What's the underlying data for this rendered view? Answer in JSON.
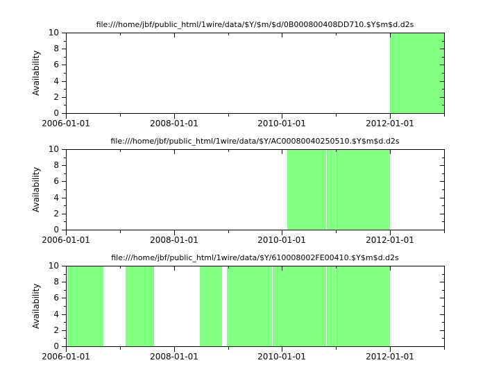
{
  "figure": {
    "background_color": "#ffffff",
    "axis_color": "#000000",
    "text_color": "#000000",
    "grid": false,
    "legend": false
  },
  "chart_data": [
    {
      "type": "area",
      "title": "file:///home/jbf/public_html/1wire/data/$Y/$m/$d/0B000800408DD710.$Y$m$d.d2s",
      "ylabel": "Availability",
      "ylim": [
        0,
        10
      ],
      "xlim": [
        "2006-01-01",
        "2013-01-01"
      ],
      "x_major_ticks": [
        "2006-01-01",
        "2008-01-01",
        "2010-01-01",
        "2012-01-01"
      ],
      "x_major_tick_labels": [
        "2006-01-01",
        "2008-01-01",
        "2010-01-01",
        "2012-01-01"
      ],
      "x_minor_ticks": [
        "2007-01-01",
        "2009-01-01",
        "2011-01-01",
        "2013-01-01"
      ],
      "y_major_ticks": [
        0,
        2,
        4,
        6,
        8,
        10
      ],
      "y_major_tick_labels": [
        "0",
        "2",
        "4",
        "6",
        "8",
        "10"
      ],
      "y_minor_ticks": [
        1,
        3,
        5,
        7,
        9
      ],
      "fill_color": "#80ff80",
      "available_value": 10,
      "intervals": [
        {
          "start": "2012-01-01",
          "end": "2013-01-01"
        }
      ],
      "micro_gaps": []
    },
    {
      "type": "area",
      "title": "file:///home/jbf/public_html/1wire/data/$Y/AC00080040250510.$Y$m$d.d2s",
      "ylabel": "Availability",
      "ylim": [
        0,
        10
      ],
      "xlim": [
        "2006-01-01",
        "2013-01-01"
      ],
      "x_major_ticks": [
        "2006-01-01",
        "2008-01-01",
        "2010-01-01",
        "2012-01-01"
      ],
      "x_major_tick_labels": [
        "2006-01-01",
        "2008-01-01",
        "2010-01-01",
        "2012-01-01"
      ],
      "x_minor_ticks": [
        "2007-01-01",
        "2009-01-01",
        "2011-01-01",
        "2013-01-01"
      ],
      "y_major_ticks": [
        0,
        2,
        4,
        6,
        8,
        10
      ],
      "y_major_tick_labels": [
        "0",
        "2",
        "4",
        "6",
        "8",
        "10"
      ],
      "y_minor_ticks": [
        1,
        3,
        5,
        7,
        9
      ],
      "fill_color": "#80ff80",
      "available_value": 10,
      "intervals": [
        {
          "start": "2010-02-05",
          "end": "2012-01-01"
        }
      ],
      "micro_gaps": [
        "2010-10-25",
        "2010-12-25"
      ]
    },
    {
      "type": "area",
      "title": "file:///home/jbf/public_html/1wire/data/$Y/610008002FE00410.$Y$m$d.d2s",
      "ylabel": "Availability",
      "ylim": [
        0,
        10
      ],
      "xlim": [
        "2006-01-01",
        "2013-01-01"
      ],
      "x_major_ticks": [
        "2006-01-01",
        "2008-01-01",
        "2010-01-01",
        "2012-01-01"
      ],
      "x_major_tick_labels": [
        "2006-01-01",
        "2008-01-01",
        "2010-01-01",
        "2012-01-01"
      ],
      "x_minor_ticks": [
        "2007-01-01",
        "2009-01-01",
        "2011-01-01",
        "2013-01-01"
      ],
      "y_major_ticks": [
        0,
        2,
        4,
        6,
        8,
        10
      ],
      "y_major_tick_labels": [
        "0",
        "2",
        "4",
        "6",
        "8",
        "10"
      ],
      "y_minor_ticks": [
        1,
        3,
        5,
        7,
        9
      ],
      "fill_color": "#80ff80",
      "available_value": 10,
      "intervals": [
        {
          "start": "2006-01-10",
          "end": "2006-09-10"
        },
        {
          "start": "2007-02-08",
          "end": "2007-08-22"
        },
        {
          "start": "2008-06-24",
          "end": "2008-11-21"
        },
        {
          "start": "2008-12-24",
          "end": "2012-01-01"
        }
      ],
      "micro_gaps": [
        "2009-10-24",
        "2010-10-25",
        "2010-12-25"
      ]
    }
  ]
}
